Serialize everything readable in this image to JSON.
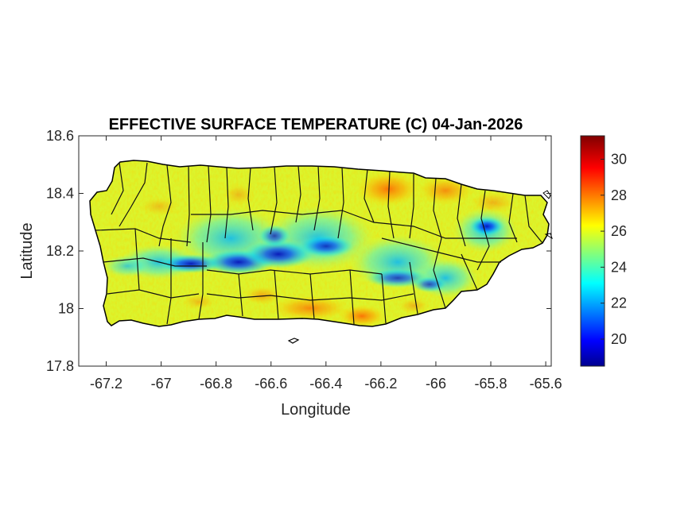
{
  "chart_data": {
    "type": "heatmap",
    "title": "EFFECTIVE SURFACE TEMPERATURE (C) 04-Jan-2026",
    "xlabel": "Longitude",
    "ylabel": "Latitude",
    "xlim": [
      -67.3,
      -65.58
    ],
    "ylim": [
      17.8,
      18.6
    ],
    "xticks": [
      -67.2,
      -67,
      -66.8,
      -66.6,
      -66.4,
      -66.2,
      -66,
      -65.8,
      -65.6
    ],
    "xtick_labels": [
      "-67.2",
      "-67",
      "-66.8",
      "-66.6",
      "-66.4",
      "-66.2",
      "-66",
      "-65.8",
      "-65.6"
    ],
    "yticks": [
      17.8,
      18,
      18.2,
      18.4,
      18.6
    ],
    "ytick_labels": [
      "17.8",
      "18",
      "18.2",
      "18.4",
      "18.6"
    ],
    "colorbar": {
      "colormap": "jet",
      "clim": [
        18.5,
        31.3
      ],
      "ticks": [
        20,
        22,
        24,
        26,
        28,
        30
      ],
      "tick_labels": [
        "20",
        "22",
        "24",
        "26",
        "28",
        "30"
      ]
    },
    "grid": false,
    "legend": "none",
    "field_description_values": {
      "coast_temperature": 26,
      "mountain_ridge_temperature": 19.5,
      "south_coast_warm_spot_temperature": 28.5,
      "northeast_warm_area_temperature": 27.5
    }
  },
  "colors": {
    "boundary": "#000000",
    "axis": "#262626",
    "background": "#ffffff"
  }
}
